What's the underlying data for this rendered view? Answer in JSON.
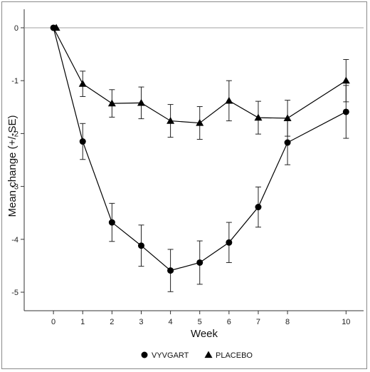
{
  "chart_data": {
    "type": "line",
    "title": "",
    "xlabel": "Week",
    "ylabel": "Mean change (+/-SE)",
    "xlim": [
      -1,
      10.6
    ],
    "ylim": [
      -5.35,
      0.35
    ],
    "x_ticks": [
      0,
      1,
      2,
      3,
      4,
      5,
      6,
      7,
      8,
      10
    ],
    "y_ticks": [
      0,
      -1,
      -2,
      -3,
      -4,
      -5
    ],
    "reference_line": 0,
    "grid": false,
    "legend_position": "bottom-center",
    "series": [
      {
        "name": "VYVGART",
        "marker": "circle",
        "color": "#000000",
        "x": [
          0,
          1,
          2,
          3,
          4,
          5,
          6,
          7,
          8,
          10
        ],
        "y": [
          0,
          -2.15,
          -3.68,
          -4.12,
          -4.59,
          -4.44,
          -4.06,
          -3.39,
          -2.17,
          -1.59
        ],
        "se": [
          0,
          0.34,
          0.36,
          0.39,
          0.4,
          0.41,
          0.38,
          0.38,
          0.42,
          0.5
        ]
      },
      {
        "name": "PLACEBO",
        "marker": "triangle",
        "color": "#000000",
        "x": [
          0,
          1,
          2,
          3,
          4,
          5,
          6,
          7,
          8,
          10
        ],
        "y": [
          0,
          -1.06,
          -1.43,
          -1.42,
          -1.76,
          -1.8,
          -1.38,
          -1.7,
          -1.71,
          -1.0
        ],
        "se": [
          0,
          0.24,
          0.26,
          0.3,
          0.31,
          0.31,
          0.38,
          0.31,
          0.34,
          0.4
        ]
      }
    ]
  }
}
